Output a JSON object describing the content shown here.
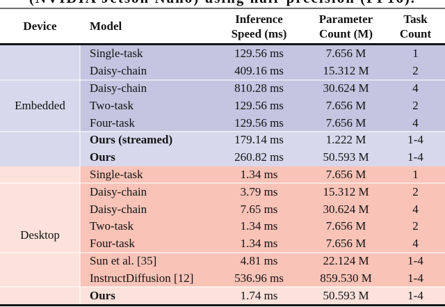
{
  "caption_clipped": "(NVIDIA Jetson Nano) using half-precision (FP16).",
  "table": {
    "header": {
      "device": "Device",
      "model": "Model",
      "speed_line1": "Inference",
      "speed_line2": "Speed (ms)",
      "params_line1": "Parameter",
      "params_line2": "Count (M)",
      "tasks_line1": "Task",
      "tasks_line2": "Count"
    },
    "sections": [
      {
        "device": "Embedded",
        "theme": "emb",
        "rows": [
          {
            "model": "Single-task",
            "speed": "129.56 ms",
            "params": "7.656 M",
            "tasks": "1",
            "bold": false,
            "light": false,
            "sep": false
          },
          {
            "model": "Daisy-chain",
            "speed": "409.16 ms",
            "params": "15.312 M",
            "tasks": "2",
            "bold": false,
            "light": false,
            "sep": false
          },
          {
            "model": "Daisy-chain",
            "speed": "810.28 ms",
            "params": "30.624 M",
            "tasks": "4",
            "bold": false,
            "light": false,
            "sep": true
          },
          {
            "model": "Two-task",
            "speed": "129.56 ms",
            "params": "7.656 M",
            "tasks": "2",
            "bold": false,
            "light": false,
            "sep": false
          },
          {
            "model": "Four-task",
            "speed": "129.56 ms",
            "params": "7.656 M",
            "tasks": "4",
            "bold": false,
            "light": false,
            "sep": false
          },
          {
            "model": "Ours (streamed)",
            "speed": "179.14 ms",
            "params": "1.222 M",
            "tasks": "1-4",
            "bold": true,
            "light": true,
            "sep": true
          },
          {
            "model": "Ours",
            "speed": "260.82 ms",
            "params": "50.593 M",
            "tasks": "1-4",
            "bold": true,
            "light": true,
            "sep": false
          }
        ]
      },
      {
        "device": "Desktop",
        "theme": "dsk",
        "rows": [
          {
            "model": "Single-task",
            "speed": "1.34 ms",
            "params": "7.656 M",
            "tasks": "1",
            "bold": false,
            "light": false,
            "sep": false
          },
          {
            "model": "Daisy-chain",
            "speed": "3.79 ms",
            "params": "15.312 M",
            "tasks": "2",
            "bold": false,
            "light": false,
            "sep": true
          },
          {
            "model": "Daisy-chain",
            "speed": "7.65 ms",
            "params": "30.624 M",
            "tasks": "4",
            "bold": false,
            "light": false,
            "sep": false
          },
          {
            "model": "Two-task",
            "speed": "1.34 ms",
            "params": "7.656 M",
            "tasks": "2",
            "bold": false,
            "light": false,
            "sep": false
          },
          {
            "model": "Four-task",
            "speed": "1.34 ms",
            "params": "7.656 M",
            "tasks": "4",
            "bold": false,
            "light": false,
            "sep": false
          },
          {
            "model": "Sun et al. [35]",
            "speed": "4.81 ms",
            "params": "22.124 M",
            "tasks": "1-4",
            "bold": false,
            "light": false,
            "sep": true
          },
          {
            "model": "InstructDiffusion [12]",
            "speed": "536.96 ms",
            "params": "859.530 M",
            "tasks": "1-4",
            "bold": false,
            "light": false,
            "sep": false
          },
          {
            "model": "Ours",
            "speed": "1.74 ms",
            "params": "50.593 M",
            "tasks": "1-4",
            "bold": true,
            "light": true,
            "sep": true
          }
        ]
      }
    ]
  },
  "colors": {
    "embedded_dark": "#c5c4e1",
    "embedded_light": "#d7d8ec",
    "desktop_dark": "#f9c3b7",
    "desktop_light": "#fce2da",
    "rule_dark": "#141414",
    "rule_gray": "#6e6e6e",
    "text": "#111111",
    "separator": "rgba(255,255,255,0.55)"
  }
}
